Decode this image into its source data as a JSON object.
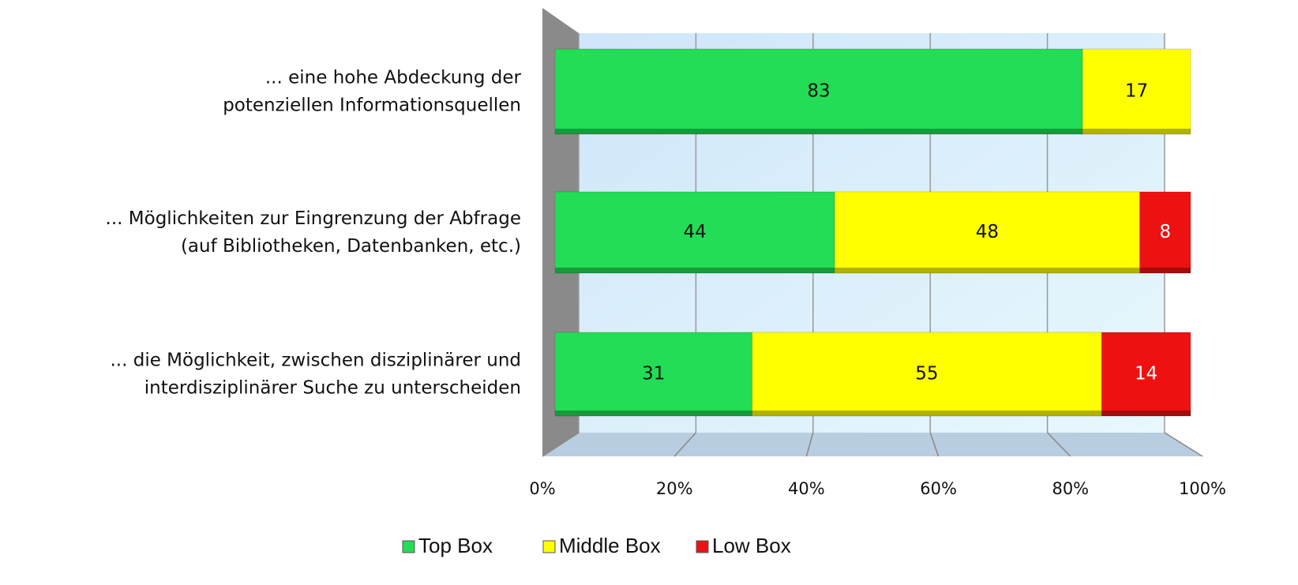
{
  "chart_data": {
    "type": "bar",
    "orientation": "horizontal",
    "stacked": true,
    "categories": [
      [
        "... eine hohe Abdeckung der",
        "potenziellen Informationsquellen"
      ],
      [
        "... Möglichkeiten zur Eingrenzung der Abfrage",
        "(auf Bibliotheken, Datenbanken, etc.)"
      ],
      [
        "... die Möglichkeit, zwischen disziplinärer und",
        "interdisziplinärer Suche zu unterscheiden"
      ]
    ],
    "series": [
      {
        "name": "Top Box",
        "color": "#22dd55",
        "values": [
          83,
          44,
          31
        ]
      },
      {
        "name": "Middle Box",
        "color": "#ffff00",
        "values": [
          17,
          48,
          55
        ]
      },
      {
        "name": "Low Box",
        "color": "#ee1111",
        "values": [
          null,
          8,
          14
        ]
      }
    ],
    "xlim": [
      0,
      100
    ],
    "xticks": [
      {
        "value": 0,
        "label": "0%"
      },
      {
        "value": 20,
        "label": "20%"
      },
      {
        "value": 40,
        "label": "40%"
      },
      {
        "value": 60,
        "label": "60%"
      },
      {
        "value": 80,
        "label": "80%"
      },
      {
        "value": 100,
        "label": "100%"
      }
    ],
    "grid": true,
    "legend": "bottom"
  }
}
